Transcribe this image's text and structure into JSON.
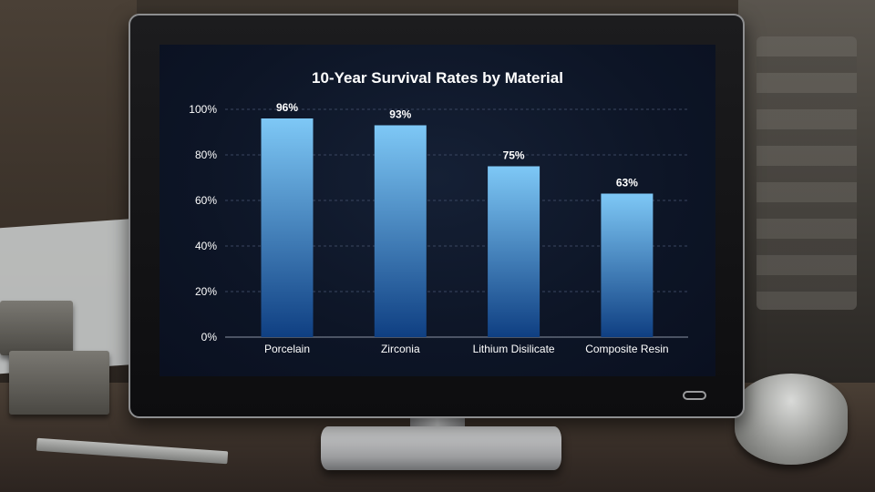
{
  "chart_data": {
    "type": "bar",
    "title": "10-Year Survival Rates by Material",
    "categories": [
      "Porcelain",
      "Zirconia",
      "Lithium Disilicate",
      "Composite Resin"
    ],
    "values": [
      96,
      93,
      75,
      63
    ],
    "value_labels": [
      "96%",
      "93%",
      "75%",
      "63%"
    ],
    "y_ticks": [
      0,
      20,
      40,
      60,
      80,
      100
    ],
    "y_tick_labels": [
      "0%",
      "20%",
      "40%",
      "60%",
      "80%",
      "100%"
    ],
    "ylim": [
      0,
      100
    ],
    "grid": true,
    "xlabel": "",
    "ylabel": ""
  },
  "colors": {
    "bar_top": "#7ec8f6",
    "bar_bottom": "#0f3f82",
    "grid": "#3a4660",
    "axis": "#8a93a3",
    "text": "#ffffff"
  }
}
